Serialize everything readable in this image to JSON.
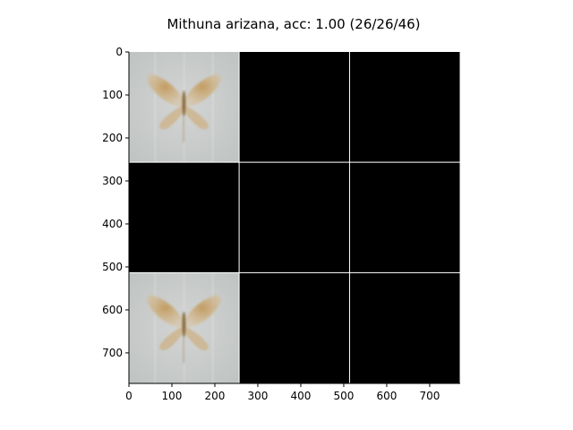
{
  "chart_data": {
    "type": "image-grid",
    "title": "Mithuna arizana, acc: 1.00 (26/26/46)",
    "xlim": [
      0,
      771
    ],
    "ylim": [
      771,
      0
    ],
    "x_ticks": [
      0,
      100,
      200,
      300,
      400,
      500,
      600,
      700
    ],
    "y_ticks": [
      0,
      100,
      200,
      300,
      400,
      500,
      600,
      700
    ],
    "grid": {
      "rows": 3,
      "cols": 3,
      "cell_size": 256,
      "separator": 1,
      "separator_color": "#ffffff"
    },
    "cells": [
      {
        "row": 0,
        "col": 0,
        "content": "moth-image"
      },
      {
        "row": 0,
        "col": 1,
        "content": "black"
      },
      {
        "row": 0,
        "col": 2,
        "content": "black"
      },
      {
        "row": 1,
        "col": 0,
        "content": "black"
      },
      {
        "row": 1,
        "col": 1,
        "content": "black"
      },
      {
        "row": 1,
        "col": 2,
        "content": "black"
      },
      {
        "row": 2,
        "col": 0,
        "content": "moth-image"
      },
      {
        "row": 2,
        "col": 1,
        "content": "black"
      },
      {
        "row": 2,
        "col": 2,
        "content": "black"
      }
    ],
    "colors": {
      "empty_cell": "#000000",
      "moth_background": "#c9cccb",
      "moth_wing": "#c9a56e",
      "moth_body": "#8e7246"
    }
  }
}
